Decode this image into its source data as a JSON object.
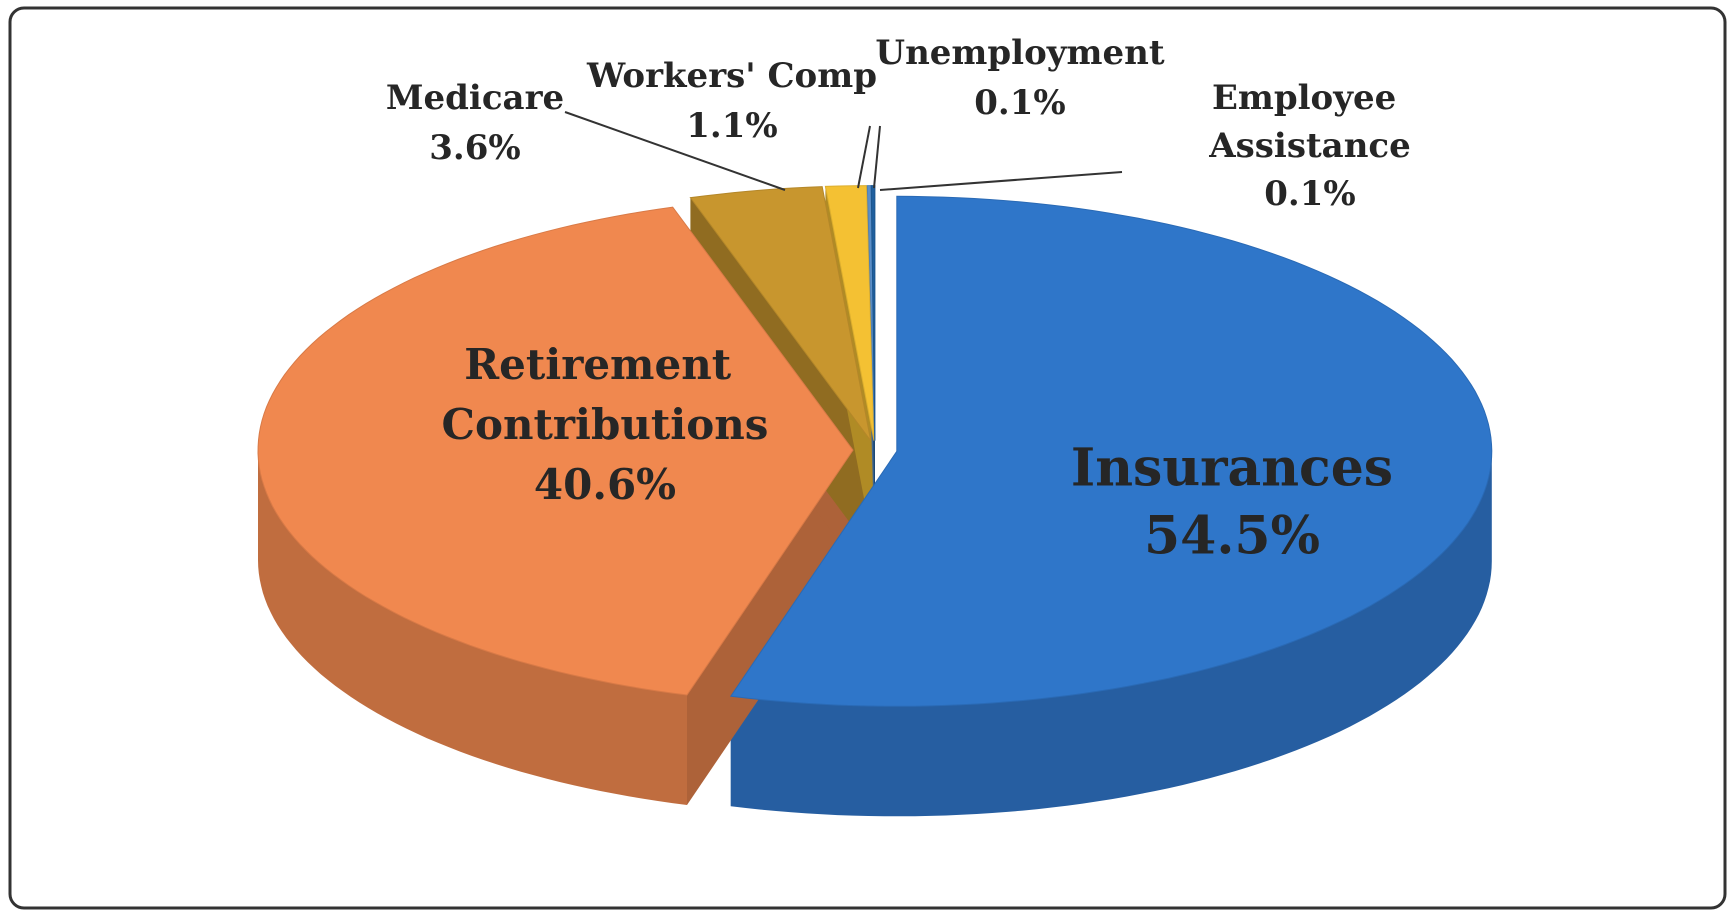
{
  "chart_data": {
    "type": "pie",
    "categories": [
      "Insurances",
      "Retirement Contributions",
      "Medicare",
      "Workers' Comp",
      "Unemployment",
      "Employee Assistance"
    ],
    "values": [
      54.5,
      40.6,
      3.6,
      1.1,
      0.1,
      0.1
    ],
    "value_labels": [
      "54.5%",
      "40.6%",
      "3.6%",
      "1.1%",
      "0.1%",
      "0.1%"
    ],
    "colors": [
      "#2f76c9",
      "#f0884f",
      "#c8962e",
      "#f4c133",
      "#5b8fc8",
      "#1f5f9e"
    ]
  }
}
